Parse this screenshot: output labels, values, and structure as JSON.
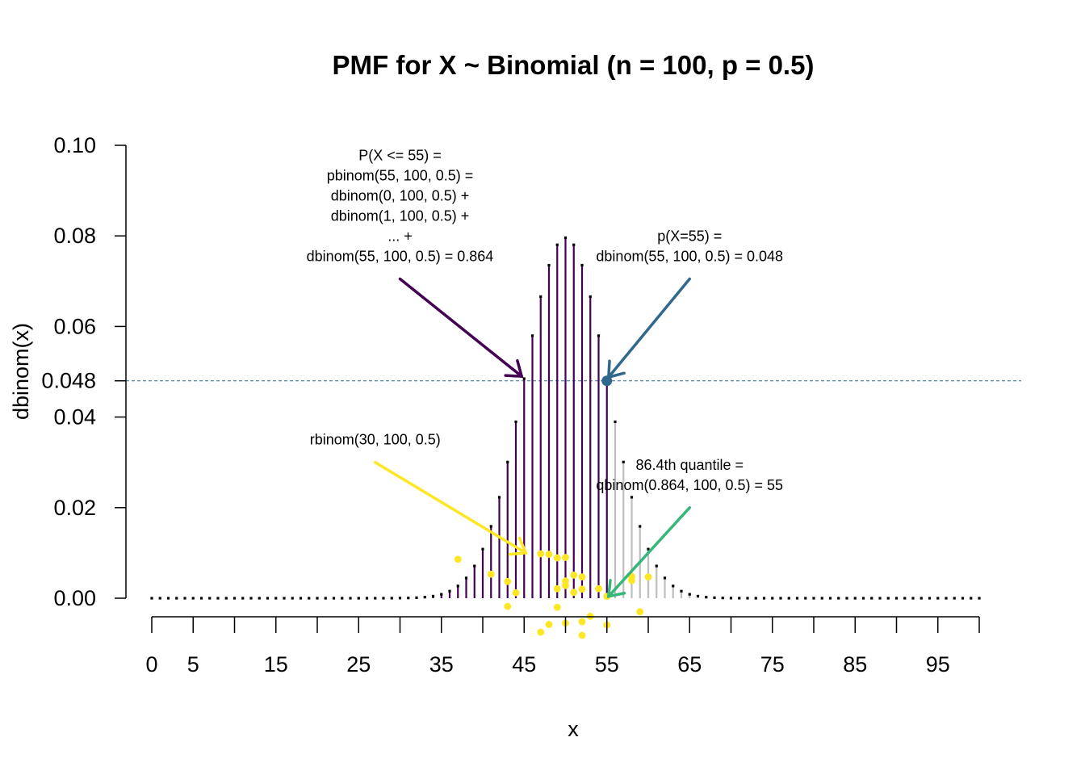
{
  "chart_data": {
    "type": "bar",
    "title": "PMF for X ~ Binomial (n = 100, p = 0.5)",
    "xlabel": "x",
    "ylabel": "dbinom(x)",
    "xlim": [
      0,
      100
    ],
    "ylim": [
      0,
      0.1
    ],
    "grid": false,
    "legend": "none",
    "x_tick_labels": [
      "0",
      "5",
      "15",
      "25",
      "35",
      "45",
      "55",
      "65",
      "75",
      "85",
      "95"
    ],
    "x_tick_values": [
      0,
      5,
      15,
      25,
      35,
      45,
      55,
      65,
      75,
      85,
      95
    ],
    "x_tick_marks": [
      0,
      5,
      10,
      15,
      20,
      25,
      30,
      35,
      40,
      45,
      50,
      55,
      60,
      65,
      70,
      75,
      80,
      85,
      90,
      95,
      100
    ],
    "y_tick_labels": [
      "0.00",
      "0.02",
      "0.04",
      "0.048",
      "0.06",
      "0.08",
      "0.10"
    ],
    "y_tick_values": [
      0,
      0.02,
      0.04,
      0.048,
      0.06,
      0.08,
      0.1
    ],
    "series": [
      {
        "distribution": "binomial",
        "n": 100,
        "p": 0.5,
        "x_min": 0,
        "x_max": 100,
        "highlight_max_x": 55,
        "color_highlight": "#440154",
        "color_rest": "#BEBEBE",
        "cap_color": "#000000"
      }
    ],
    "reference_line": {
      "y": 0.048,
      "color": "#31688E",
      "style": "dashed"
    },
    "point_x55": {
      "x": 55,
      "y": 0.048,
      "color": "#31688E"
    },
    "random_sample": {
      "color": "#FDE725",
      "points": [
        [
          37,
          0.0086
        ],
        [
          41,
          0.0053
        ],
        [
          43,
          0.0037
        ],
        [
          43,
          -0.0018
        ],
        [
          44,
          0.0012
        ],
        [
          47,
          0.0098
        ],
        [
          47,
          -0.0075
        ],
        [
          48,
          0.0097
        ],
        [
          48,
          -0.0058
        ],
        [
          49,
          0.0089
        ],
        [
          49,
          0.0021
        ],
        [
          49,
          -0.002
        ],
        [
          50,
          0.009
        ],
        [
          50,
          0.0038
        ],
        [
          50,
          0.0028
        ],
        [
          50,
          -0.0055
        ],
        [
          51,
          0.0051
        ],
        [
          51,
          0.0013
        ],
        [
          52,
          0.0047
        ],
        [
          52,
          0.002
        ],
        [
          52,
          -0.0052
        ],
        [
          52,
          -0.0082
        ],
        [
          53,
          -0.004
        ],
        [
          54,
          0.0021
        ],
        [
          55,
          0.0004
        ],
        [
          55,
          -0.0059
        ],
        [
          58,
          0.0048
        ],
        [
          58,
          0.0039
        ],
        [
          59,
          -0.003
        ],
        [
          60,
          0.0047
        ]
      ]
    },
    "annotations": [
      {
        "lines": [
          "P(X <= 55) =",
          "pbinom(55, 100, 0.5) =",
          "dbinom(0, 100, 0.5) +",
          "dbinom(1, 100, 0.5) +",
          "... +",
          "dbinom(55, 100, 0.5) = 0.864"
        ],
        "color": "#440154",
        "arrow_from": [
          30,
          0.0705
        ],
        "arrow_to": [
          44.7,
          0.049
        ]
      },
      {
        "lines": [
          "p(X=55) =",
          "dbinom(55, 100, 0.5) = 0.048"
        ],
        "color": "#31688E",
        "arrow_from": [
          65,
          0.0705
        ],
        "arrow_to": [
          55.2,
          0.0488
        ]
      },
      {
        "lines": [
          "rbinom(30, 100, 0.5)"
        ],
        "color": "#FDE725",
        "arrow_from": [
          27,
          0.03
        ],
        "arrow_to": [
          45.2,
          0.01
        ]
      },
      {
        "lines": [
          "86.4th quantile =",
          "qbinom(0.864, 100, 0.5) = 55"
        ],
        "color": "#35B779",
        "arrow_from": [
          65,
          0.02
        ],
        "arrow_to": [
          55.2,
          0.0004
        ]
      }
    ]
  }
}
